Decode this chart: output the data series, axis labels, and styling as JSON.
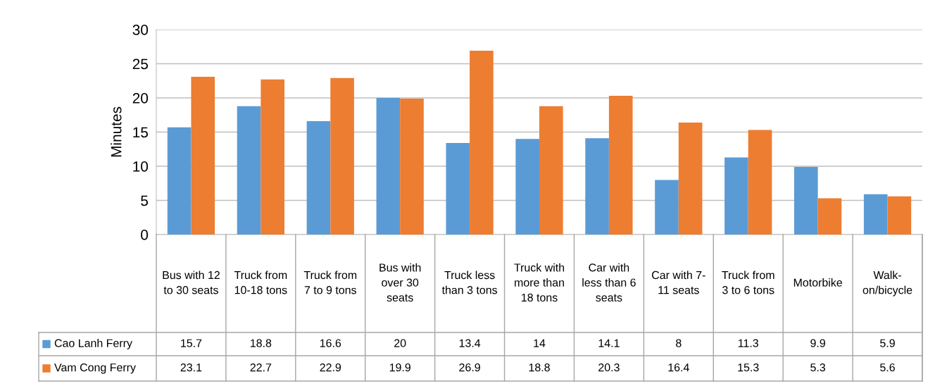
{
  "chart_data": {
    "type": "bar",
    "ylabel": "Minutes",
    "categories": [
      "Bus with 12 to 30 seats",
      "Truck from 10-18 tons",
      "Truck from 7 to 9 tons",
      "Bus with over 30 seats",
      "Truck less than 3 tons",
      "Truck with more than 18 tons",
      "Car with less than 6 seats",
      "Car with 7-11 seats",
      "Truck from 3 to 6 tons",
      "Motorbike",
      "Walk-on/bicycle"
    ],
    "series": [
      {
        "name": "Cao Lanh Ferry",
        "color": "#5b9bd5",
        "values": [
          15.7,
          18.8,
          16.6,
          20,
          13.4,
          14,
          14.1,
          8,
          11.3,
          9.9,
          5.9
        ]
      },
      {
        "name": "Vam Cong Ferry",
        "color": "#ed7d31",
        "values": [
          23.1,
          22.7,
          22.9,
          19.9,
          26.9,
          18.8,
          20.3,
          16.4,
          15.3,
          5.3,
          5.6
        ]
      }
    ],
    "ylim": [
      0,
      30
    ],
    "yticks": [
      0,
      5,
      10,
      15,
      20,
      25,
      30
    ],
    "grid": "y",
    "legend": "bottom",
    "data_labels": true
  }
}
